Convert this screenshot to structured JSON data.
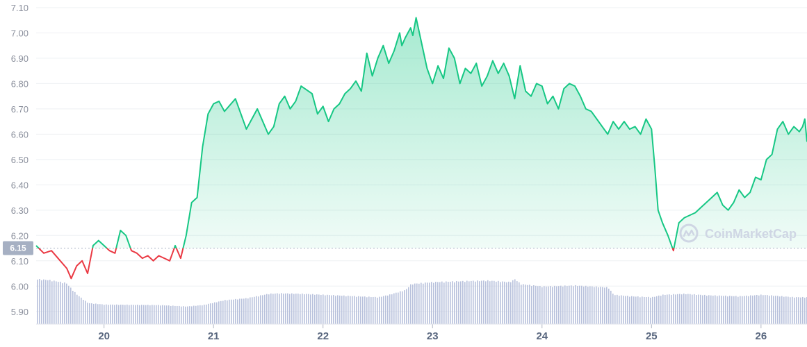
{
  "chart_data": {
    "type": "line",
    "x_unit": "day",
    "xlim": [
      19.38,
      26.42
    ],
    "ylim": [
      5.85,
      7.13
    ],
    "y_ticks": [
      "7.10",
      "7.00",
      "6.90",
      "6.80",
      "6.70",
      "6.60",
      "6.50",
      "6.40",
      "6.30",
      "6.20",
      "6.10",
      "6.00",
      "5.90"
    ],
    "x_ticks": [
      "20",
      "21",
      "22",
      "23",
      "24",
      "25",
      "26"
    ],
    "reference_value": 6.15,
    "reference_label": "6.15",
    "grid": true,
    "colors": {
      "above": "#16c784",
      "below": "#ea3943",
      "fill_top": "#16c784",
      "volume": "#b8c1dc",
      "grid": "#eef0f3",
      "reference": "#a6b0c3",
      "label_bg": "#a6b0c3"
    },
    "price": {
      "x": [
        19.38,
        19.45,
        19.52,
        19.6,
        19.66,
        19.7,
        19.75,
        19.8,
        19.85,
        19.9,
        19.95,
        20.0,
        20.05,
        20.1,
        20.15,
        20.2,
        20.25,
        20.3,
        20.35,
        20.4,
        20.45,
        20.5,
        20.55,
        20.6,
        20.65,
        20.7,
        20.75,
        20.8,
        20.85,
        20.9,
        20.95,
        21.0,
        21.05,
        21.1,
        21.2,
        21.3,
        21.4,
        21.5,
        21.55,
        21.6,
        21.65,
        21.7,
        21.75,
        21.8,
        21.9,
        21.95,
        22.0,
        22.05,
        22.1,
        22.15,
        22.2,
        22.25,
        22.3,
        22.35,
        22.4,
        22.45,
        22.5,
        22.55,
        22.6,
        22.65,
        22.7,
        22.72,
        22.75,
        22.8,
        22.82,
        22.85,
        22.9,
        22.95,
        23.0,
        23.05,
        23.1,
        23.15,
        23.2,
        23.25,
        23.3,
        23.35,
        23.4,
        23.45,
        23.5,
        23.55,
        23.6,
        23.65,
        23.7,
        23.75,
        23.8,
        23.85,
        23.9,
        23.95,
        24.0,
        24.05,
        24.1,
        24.15,
        24.2,
        24.25,
        24.3,
        24.35,
        24.4,
        24.45,
        24.5,
        24.55,
        24.6,
        24.65,
        24.7,
        24.75,
        24.8,
        24.85,
        24.9,
        24.95,
        25.0,
        25.03,
        25.06,
        25.1,
        25.15,
        25.2,
        25.25,
        25.3,
        25.35,
        25.4,
        25.45,
        25.5,
        25.55,
        25.6,
        25.65,
        25.7,
        25.75,
        25.8,
        25.85,
        25.9,
        25.95,
        26.0,
        26.05,
        26.1,
        26.15,
        26.2,
        26.25,
        26.3,
        26.35,
        26.38,
        26.4,
        26.42
      ],
      "y": [
        6.16,
        6.13,
        6.14,
        6.1,
        6.07,
        6.03,
        6.08,
        6.1,
        6.05,
        6.16,
        6.18,
        6.16,
        6.14,
        6.13,
        6.22,
        6.2,
        6.14,
        6.13,
        6.11,
        6.12,
        6.1,
        6.12,
        6.11,
        6.1,
        6.16,
        6.11,
        6.2,
        6.33,
        6.35,
        6.55,
        6.68,
        6.72,
        6.73,
        6.69,
        6.74,
        6.62,
        6.7,
        6.6,
        6.63,
        6.72,
        6.75,
        6.7,
        6.73,
        6.79,
        6.76,
        6.68,
        6.71,
        6.65,
        6.7,
        6.72,
        6.76,
        6.78,
        6.81,
        6.77,
        6.92,
        6.83,
        6.9,
        6.95,
        6.88,
        6.93,
        7.0,
        6.95,
        6.98,
        7.02,
        6.99,
        7.06,
        6.96,
        6.86,
        6.8,
        6.87,
        6.82,
        6.94,
        6.9,
        6.8,
        6.86,
        6.84,
        6.88,
        6.79,
        6.83,
        6.89,
        6.84,
        6.88,
        6.83,
        6.74,
        6.87,
        6.77,
        6.75,
        6.8,
        6.79,
        6.72,
        6.75,
        6.7,
        6.78,
        6.8,
        6.79,
        6.75,
        6.7,
        6.69,
        6.66,
        6.63,
        6.6,
        6.65,
        6.62,
        6.65,
        6.62,
        6.63,
        6.6,
        6.66,
        6.62,
        6.47,
        6.3,
        6.25,
        6.2,
        6.14,
        6.25,
        6.27,
        6.28,
        6.29,
        6.31,
        6.33,
        6.35,
        6.37,
        6.32,
        6.3,
        6.33,
        6.38,
        6.35,
        6.37,
        6.43,
        6.42,
        6.5,
        6.52,
        6.62,
        6.65,
        6.6,
        6.63,
        6.61,
        6.63,
        6.66,
        6.57
      ],
      "min_x": 25.18,
      "min_y": 6.14
    },
    "volume": {
      "x": [
        19.38,
        19.5,
        19.65,
        19.75,
        19.85,
        20.0,
        20.5,
        20.75,
        20.9,
        21.1,
        21.3,
        21.5,
        21.6,
        21.8,
        22.0,
        22.3,
        22.5,
        22.6,
        22.75,
        22.8,
        23.0,
        23.3,
        23.5,
        23.7,
        23.75,
        23.8,
        24.0,
        24.3,
        24.6,
        24.65,
        24.8,
        25.0,
        25.1,
        25.3,
        25.5,
        25.8,
        26.0,
        26.3,
        26.42
      ],
      "level": [
        0.92,
        0.9,
        0.84,
        0.6,
        0.43,
        0.4,
        0.39,
        0.36,
        0.39,
        0.49,
        0.53,
        0.62,
        0.63,
        0.62,
        0.6,
        0.57,
        0.55,
        0.6,
        0.7,
        0.82,
        0.86,
        0.88,
        0.89,
        0.86,
        0.92,
        0.82,
        0.77,
        0.79,
        0.75,
        0.6,
        0.57,
        0.55,
        0.6,
        0.62,
        0.59,
        0.57,
        0.6,
        0.55,
        0.55
      ]
    }
  },
  "watermark": {
    "text": "CoinMarketCap",
    "logo_icon": "coinmarketcap-logo-icon"
  }
}
